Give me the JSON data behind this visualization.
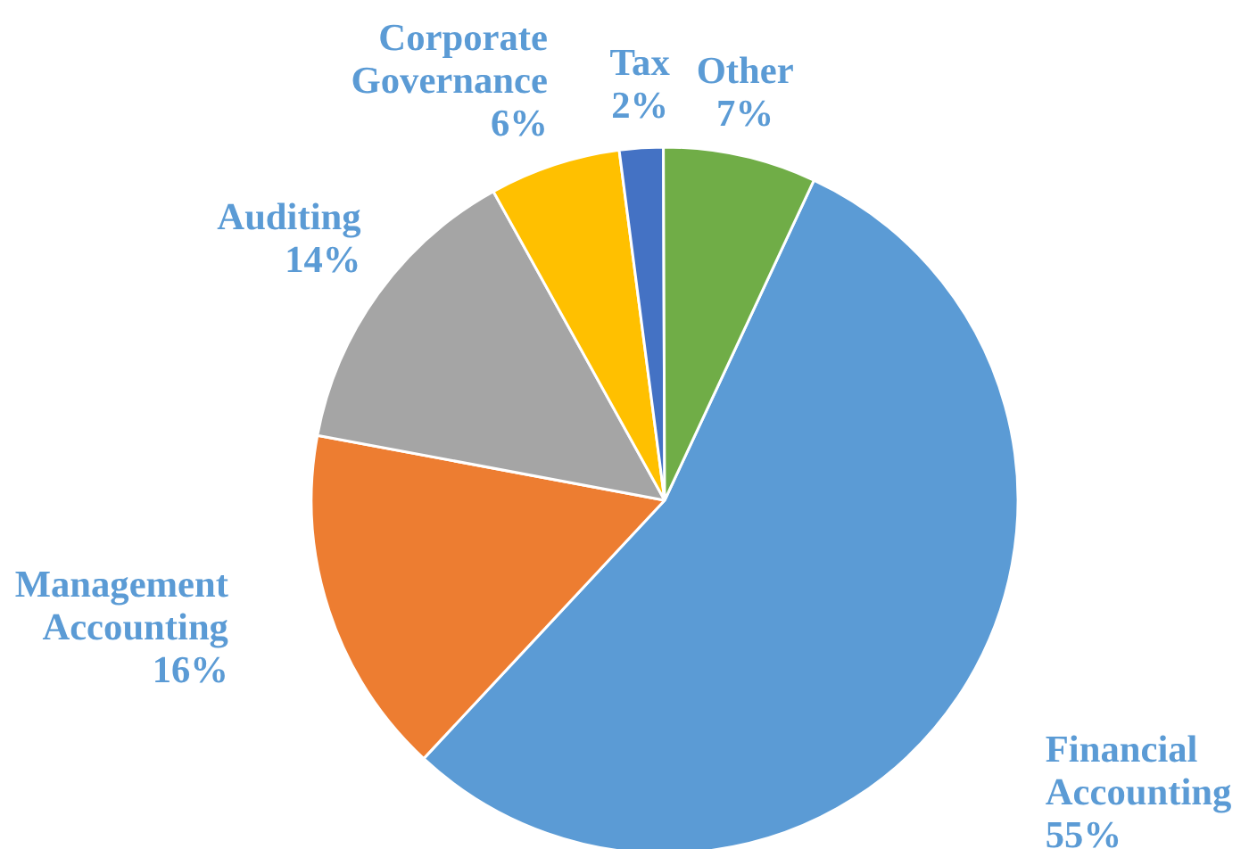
{
  "chart_data": {
    "type": "pie",
    "categories": [
      "Financial Accounting",
      "Management Accounting",
      "Auditing",
      "Corporate Governance",
      "Tax",
      "Other"
    ],
    "values": [
      55,
      16,
      14,
      6,
      2,
      7
    ],
    "colors": [
      "#5b9bd5",
      "#ed7d31",
      "#a5a5a5",
      "#ffc000",
      "#4472c4",
      "#70ad47"
    ],
    "value_labels": [
      "55%",
      "16%",
      "14%",
      "6%",
      "2%",
      "7%"
    ]
  }
}
